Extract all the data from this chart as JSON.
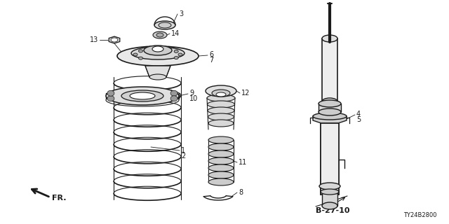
{
  "bg_color": "#ffffff",
  "line_color": "#1a1a1a",
  "fig_width": 6.4,
  "fig_height": 3.2,
  "dpi": 100,
  "diagram_ref": "B-27-10",
  "doc_ref": "TY24B2800"
}
